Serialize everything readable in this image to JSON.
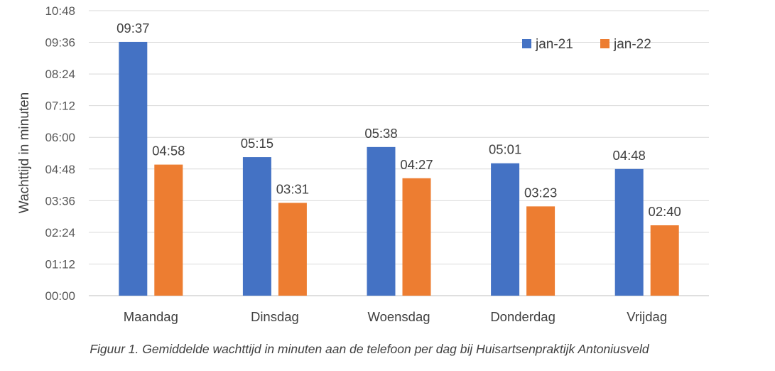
{
  "chart_data": {
    "type": "bar",
    "categories": [
      "Maandag",
      "Dinsdag",
      "Woensdag",
      "Donderdag",
      "Vrijdag"
    ],
    "series": [
      {
        "name": "jan-21",
        "color": "#4472C4",
        "values": [
          577,
          315,
          338,
          301,
          288
        ],
        "labels": [
          "09:37",
          "05:15",
          "05:38",
          "05:01",
          "04:48"
        ]
      },
      {
        "name": "jan-22",
        "color": "#ED7D31",
        "values": [
          298,
          211,
          267,
          203,
          160
        ],
        "labels": [
          "04:58",
          "03:31",
          "04:27",
          "03:23",
          "02:40"
        ]
      }
    ],
    "ylabel": "Wachttijd in minuten",
    "ylim": [
      0,
      648
    ],
    "yticks": [
      0,
      72,
      144,
      216,
      288,
      360,
      432,
      504,
      576,
      648
    ],
    "ytick_labels": [
      "00:00",
      "01:12",
      "02:24",
      "03:36",
      "04:48",
      "06:00",
      "07:12",
      "08:24",
      "09:36",
      "10:48"
    ],
    "grid": true,
    "legend_position": "top-right"
  },
  "caption": "Figuur 1. Gemiddelde wachttijd in minuten aan de telefoon per dag bij Huisartsenpraktijk Antoniusveld"
}
